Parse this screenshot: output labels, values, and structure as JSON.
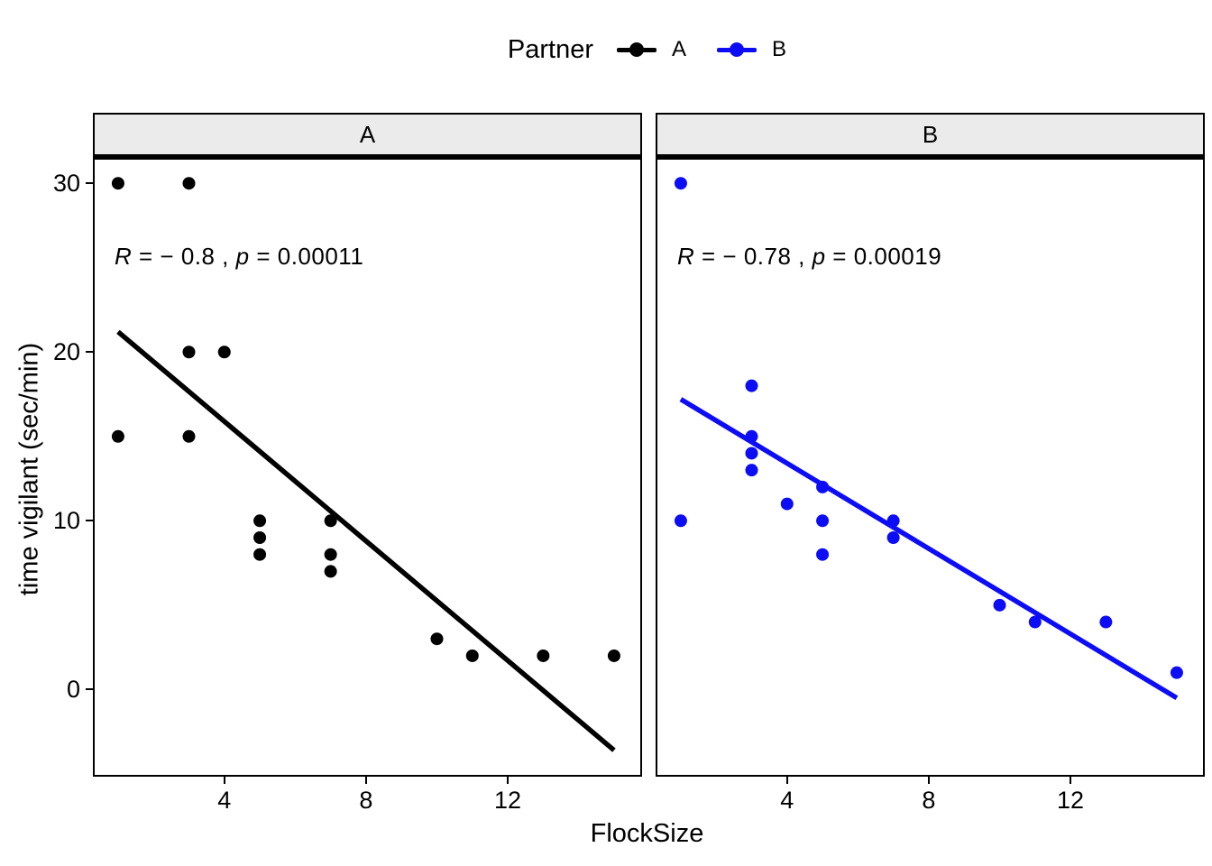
{
  "legend": {
    "title": "Partner",
    "items": [
      {
        "label": "A",
        "color": "#000000"
      },
      {
        "label": "B",
        "color": "#0d0df5"
      }
    ]
  },
  "axes": {
    "x_label": "FlockSize",
    "y_label": "time vigilant (sec/min)",
    "x_ticks": [
      4,
      8,
      12
    ],
    "y_ticks": [
      30,
      20,
      10,
      0
    ],
    "x_domain": [
      0.34,
      15.74
    ],
    "y_domain": [
      -5.06,
      31.4
    ],
    "grid": "off",
    "legend_position": "top"
  },
  "chart_data": [
    {
      "type": "scatter",
      "facet": "A",
      "color": "#000000",
      "x": [
        1,
        3,
        3,
        4,
        1,
        3,
        5,
        5,
        5,
        7,
        7,
        7,
        10,
        11,
        13,
        15
      ],
      "y": [
        30,
        30,
        20,
        20,
        15,
        15,
        10,
        9,
        8,
        10,
        8,
        7,
        3,
        2,
        2,
        2
      ],
      "trend": {
        "x1": 1,
        "y1": 21.2,
        "x2": 15,
        "y2": -3.6
      },
      "annotation_segments": [
        {
          "text": "R",
          "italic": true
        },
        {
          "text": " = − 0.8 , ",
          "italic": false
        },
        {
          "text": "p",
          "italic": true
        },
        {
          "text": " = 0.00011",
          "italic": false
        }
      ]
    },
    {
      "type": "scatter",
      "facet": "B",
      "color": "#0d0df5",
      "x": [
        1,
        1,
        3,
        3,
        3,
        3,
        4,
        5,
        5,
        5,
        7,
        7,
        10,
        11,
        13,
        15
      ],
      "y": [
        30,
        10,
        18,
        15,
        14,
        13,
        11,
        12,
        10,
        8,
        10,
        9,
        5,
        4,
        4,
        1
      ],
      "trend": {
        "x1": 1,
        "y1": 17.2,
        "x2": 15,
        "y2": -0.5
      },
      "annotation_segments": [
        {
          "text": "R",
          "italic": true
        },
        {
          "text": " = − 0.78 , ",
          "italic": false
        },
        {
          "text": "p",
          "italic": true
        },
        {
          "text": " = 0.00019",
          "italic": false
        }
      ]
    }
  ]
}
